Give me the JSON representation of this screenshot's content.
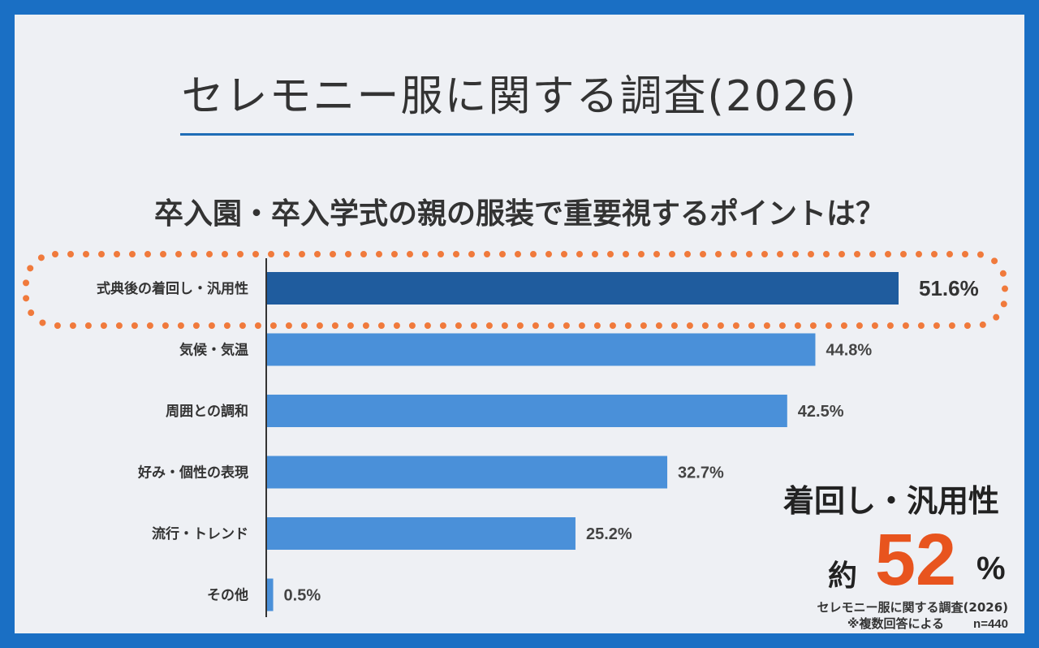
{
  "header": {
    "title": "セレモニー服に関する調査(2026)",
    "question": "卒入園・卒入学式の親の服装で重要視するポイントは？"
  },
  "colors": {
    "frame": "#1a6fc4",
    "highlight_bar": "#1f5c9e",
    "bar": "#4a90d9",
    "highlight_ring": "#f07a3c",
    "callout_number": "#e8541e"
  },
  "callout": {
    "heading": "着回し・汎用性",
    "prefix": "約",
    "number": "52",
    "suffix": "%"
  },
  "source": {
    "line1": "セレモニー服に関する調査(2026)",
    "line2": "※複数回答による",
    "n": "n=440"
  },
  "chart_data": {
    "type": "bar",
    "orientation": "horizontal",
    "categories": [
      "式典後の着回し・汎用性",
      "気候・気温",
      "周囲との調和",
      "好み・個性の表現",
      "流行・トレンド",
      "その他"
    ],
    "values": [
      51.6,
      44.8,
      42.5,
      32.7,
      25.2,
      0.5
    ],
    "value_labels": [
      "51.6%",
      "44.8%",
      "42.5%",
      "32.7%",
      "25.2%",
      "0.5%"
    ],
    "highlighted_index": 0,
    "title": "",
    "xlabel": "",
    "ylabel": "",
    "grid": false
  }
}
